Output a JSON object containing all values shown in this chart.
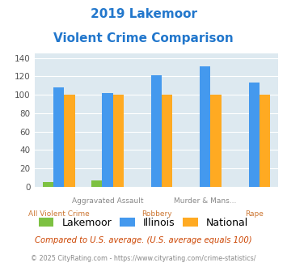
{
  "title_line1": "2019 Lakemoor",
  "title_line2": "Violent Crime Comparison",
  "cat_labels_top": [
    "",
    "Aggravated Assault",
    "",
    "Murder & Mans...",
    ""
  ],
  "cat_labels_bot": [
    "All Violent Crime",
    "",
    "Robbery",
    "",
    "Rape"
  ],
  "lakemoor": [
    5,
    7,
    0,
    0,
    0
  ],
  "illinois": [
    108,
    102,
    121,
    131,
    113
  ],
  "national": [
    100,
    100,
    100,
    100,
    100
  ],
  "colors": {
    "lakemoor": "#7dc142",
    "illinois": "#4499ee",
    "national": "#ffaa22"
  },
  "ylim": [
    0,
    145
  ],
  "yticks": [
    0,
    20,
    40,
    60,
    80,
    100,
    120,
    140
  ],
  "bg_color": "#dde9f0",
  "title_color": "#2277cc",
  "xlabel_top_color": "#888888",
  "xlabel_bot_color": "#cc7733",
  "footnote1": "Compared to U.S. average. (U.S. average equals 100)",
  "footnote2": "© 2025 CityRating.com - https://www.cityrating.com/crime-statistics/",
  "footnote1_color": "#cc4400",
  "footnote2_color": "#888888"
}
